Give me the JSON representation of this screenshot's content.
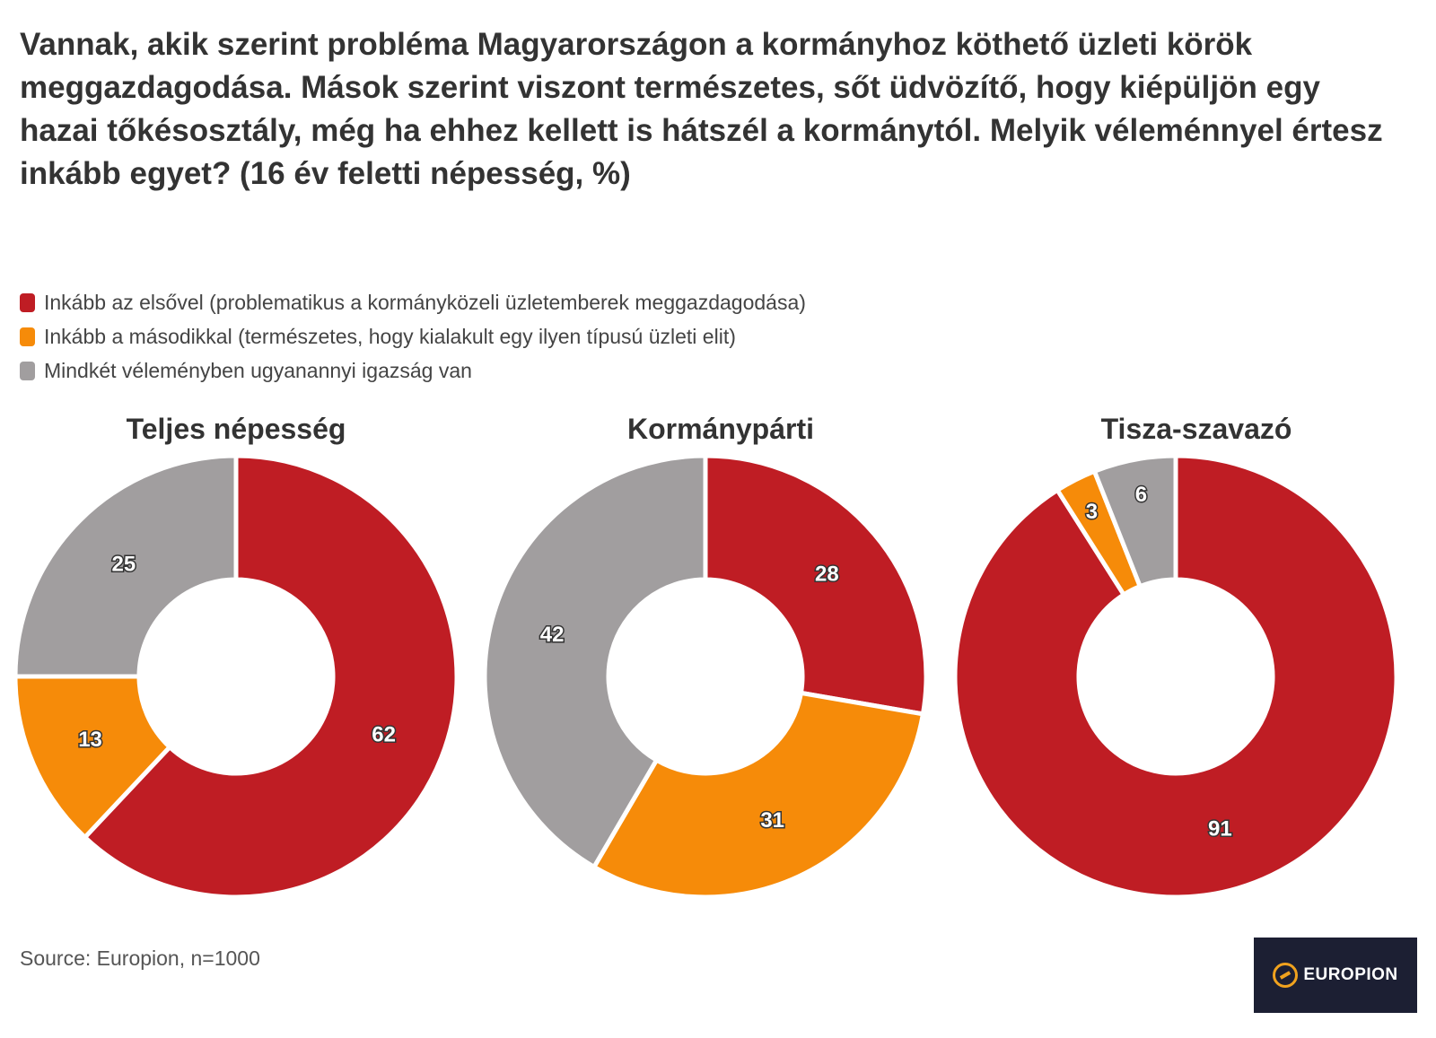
{
  "title": "Vannak, akik szerint probléma Magyarországon a kormányhoz köthető üzleti körök meggazdagodása. Mások szerint viszont természetes, sőt üdvözítő, hogy kiépüljön egy hazai tőkésosztály, még ha ehhez kellett is hátszél a kormánytól. Melyik véleménnyel értesz inkább egyet? (16 év feletti népesség, %)",
  "legend": [
    {
      "label": "Inkább az elsővel (problematikus a kormányközeli üzletemberek meggazdagodása)",
      "color": "#bf1d24"
    },
    {
      "label": "Inkább a másodikkal (természetes, hogy kialakult egy ilyen típusú üzleti elit)",
      "color": "#f68b09"
    },
    {
      "label": "Mindkét véleményben ugyanannyi igazság van",
      "color": "#a19e9f"
    }
  ],
  "chart_data": [
    {
      "type": "pie",
      "title": "Teljes népesség",
      "categories": [
        "Inkább az elsővel",
        "Inkább a másodikkal",
        "Mindkét véleményben ugyanannyi igazság van"
      ],
      "values": [
        62,
        13,
        25
      ],
      "colors": [
        "#bf1d24",
        "#f68b09",
        "#a19e9f"
      ]
    },
    {
      "type": "pie",
      "title": "Kormánypárti",
      "categories": [
        "Inkább az elsővel",
        "Inkább a másodikkal",
        "Mindkét véleményben ugyanannyi igazság van"
      ],
      "values": [
        28,
        31,
        42
      ],
      "colors": [
        "#bf1d24",
        "#f68b09",
        "#a19e9f"
      ]
    },
    {
      "type": "pie",
      "title": "Tisza-szavazó",
      "categories": [
        "Inkább az elsővel",
        "Inkább a másodikkal",
        "Mindkét véleményben ugyanannyi igazság van"
      ],
      "values": [
        91,
        3,
        6
      ],
      "colors": [
        "#bf1d24",
        "#f68b09",
        "#a19e9f"
      ]
    }
  ],
  "source": "Source: Europion, n=1000",
  "logo": {
    "text": "EUROPION",
    "icon": "europion-logo-icon"
  }
}
